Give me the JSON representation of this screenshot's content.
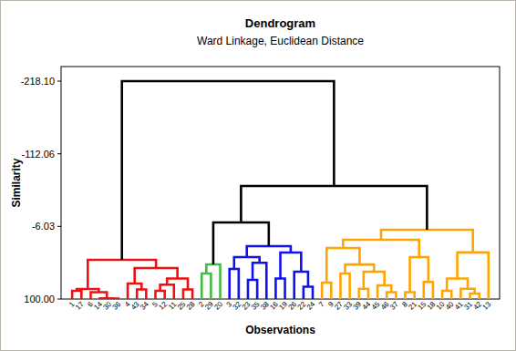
{
  "chart_data": {
    "type": "dendrogram",
    "title": "Dendrogram",
    "subtitle": "Ward Linkage, Euclidean Distance",
    "x_label": "Observations",
    "y_label": "Similarity",
    "categories": [
      "1",
      "17",
      "6",
      "14",
      "30",
      "36",
      "4",
      "43",
      "34",
      "5",
      "12",
      "11",
      "25",
      "28",
      "2",
      "29",
      "20",
      "3",
      "32",
      "23",
      "35",
      "38",
      "16",
      "19",
      "26",
      "22",
      "24",
      "7",
      "9",
      "27",
      "33",
      "39",
      "44",
      "45",
      "46",
      "37",
      "8",
      "21",
      "15",
      "18",
      "10",
      "40",
      "41",
      "31",
      "42",
      "13"
    ],
    "ylim": [
      100,
      -239.4
    ],
    "yticks": [
      {
        "value": -218.1,
        "label": "-218.10"
      },
      {
        "value": -112.06,
        "label": "-112.06"
      },
      {
        "value": -6.03,
        "label": "-6.03"
      },
      {
        "value": 100,
        "label": "100.00"
      }
    ],
    "tree": {
      "similarity": -218.1,
      "color": "#000000",
      "children": [
        {
          "similarity": 42.8,
          "color": "#ee1111",
          "children": [
            {
              "similarity": 85.4,
              "children": [
                {
                  "similarity": 88,
                  "children": [
                    0,
                    1
                  ]
                },
                {
                  "similarity": 90,
                  "children": [
                    2,
                    {
                      "similarity": 99,
                      "children": [
                        3,
                        {
                          "similarity": 99.5,
                          "children": [
                            4,
                            5
                          ]
                        }
                      ]
                    }
                  ]
                }
              ]
            },
            {
              "similarity": 54.7,
              "children": [
                {
                  "similarity": 77.4,
                  "children": [
                    6,
                    {
                      "similarity": 86,
                      "children": [
                        7,
                        8
                      ]
                    }
                  ]
                },
                {
                  "similarity": 70,
                  "children": [
                    {
                      "similarity": 79,
                      "children": [
                        {
                          "similarity": 88,
                          "children": [
                            9,
                            10
                          ]
                        },
                        11
                      ]
                    },
                    {
                      "similarity": 86,
                      "children": [
                        12,
                        13
                      ]
                    }
                  ]
                }
              ]
            }
          ]
        },
        {
          "similarity": -65,
          "children": [
            {
              "similarity": -11.8,
              "children": [
                {
                  "similarity": 49.4,
                  "color": "#44bb44",
                  "children": [
                    {
                      "similarity": 62.7,
                      "children": [
                        14,
                        15
                      ]
                    },
                    16
                  ]
                },
                {
                  "similarity": 22.8,
                  "color": "#1111ee",
                  "children": [
                    {
                      "similarity": 38.8,
                      "children": [
                        {
                          "similarity": 56,
                          "children": [
                            17,
                            18
                          ]
                        },
                        {
                          "similarity": 47,
                          "children": [
                            {
                              "similarity": 72,
                              "children": [
                                19,
                                20
                              ]
                            },
                            21
                          ]
                        }
                      ]
                    },
                    {
                      "similarity": 32.1,
                      "children": [
                        {
                          "similarity": 70,
                          "children": [
                            22,
                            23
                          ]
                        },
                        {
                          "similarity": 60,
                          "children": [
                            24,
                            {
                              "similarity": 82,
                              "children": [
                                25,
                                26
                              ]
                            }
                          ]
                        }
                      ]
                    }
                  ]
                }
              ]
            },
            {
              "similarity": -1.2,
              "color": "#ffa500",
              "children": [
                {
                  "similarity": 13.5,
                  "children": [
                    {
                      "similarity": 25.5,
                      "children": [
                        {
                          "similarity": 76,
                          "children": [
                            27,
                            28
                          ]
                        },
                        {
                          "similarity": 49.6,
                          "children": [
                            {
                              "similarity": 62.7,
                              "children": [
                                29,
                                30
                              ]
                            },
                            {
                              "similarity": 60,
                              "children": [
                                {
                                  "similarity": 85,
                                  "children": [
                                    31,
                                    32
                                  ]
                                },
                                {
                                  "similarity": 80,
                                  "children": [
                                    33,
                                    {
                                      "similarity": 90,
                                      "children": [
                                        34,
                                        35
                                      ]
                                    }
                                  ]
                                }
                              ]
                            }
                          ]
                        }
                      ]
                    },
                    {
                      "similarity": 38.8,
                      "children": [
                        {
                          "similarity": 90,
                          "children": [
                            36,
                            37
                          ]
                        },
                        {
                          "similarity": 75,
                          "children": [
                            38,
                            39
                          ]
                        }
                      ]
                    }
                  ]
                },
                {
                  "similarity": 32,
                  "children": [
                    {
                      "similarity": 70,
                      "children": [
                        {
                          "similarity": 88,
                          "children": [
                            40,
                            41
                          ]
                        },
                        {
                          "similarity": 85,
                          "children": [
                            42,
                            {
                              "similarity": 92,
                              "children": [
                                43,
                                44
                              ]
                            }
                          ]
                        }
                      ]
                    },
                    45
                  ]
                }
              ]
            }
          ]
        }
      ]
    }
  }
}
